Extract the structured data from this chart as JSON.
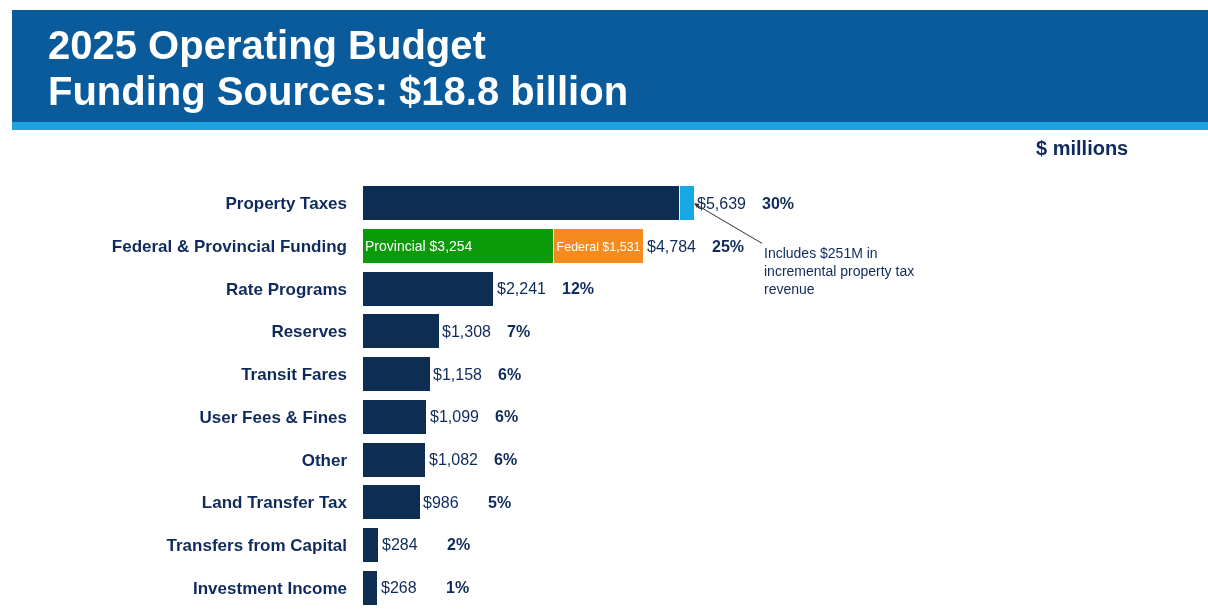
{
  "chart_data": {
    "type": "bar",
    "orientation": "horizontal",
    "stacked": true,
    "tick_labels": "y",
    "title": "2025 Operating Budget\nFunding Sources: $18.8 billion",
    "categories": [
      "Property Taxes",
      "Federal & Provincial Funding",
      "Rate Programs",
      "Reserves",
      "Transit Fares",
      "User Fees & Fines",
      "Other",
      "Land Transfer Tax",
      "Transfers from Capital",
      "Investment Income"
    ],
    "series": [
      {
        "color": "#0d2d52",
        "values": [
          5388,
          null,
          2241,
          1308,
          1158,
          1099,
          1082,
          986,
          284,
          268
        ]
      },
      {
        "color": "#17a9e6",
        "values": [
          251,
          null,
          null,
          null,
          null,
          null,
          null,
          null,
          null,
          null
        ]
      },
      {
        "color": "#0a9a0a",
        "values": [
          null,
          3254,
          null,
          null,
          null,
          null,
          null,
          null,
          null,
          null
        ],
        "value_labels": [
          null,
          "Provincial $3,254",
          null,
          null,
          null,
          null,
          null,
          null,
          null,
          null
        ]
      },
      {
        "color": "#f58a1f",
        "values": [
          null,
          1531,
          null,
          null,
          null,
          null,
          null,
          null,
          null,
          null
        ],
        "value_labels": [
          null,
          "Federal $1,531",
          null,
          null,
          null,
          null,
          null,
          null,
          null,
          null
        ]
      }
    ],
    "totals": [
      "$5,639",
      "$4,784",
      "$2,241",
      "$1,308",
      "$1,158",
      "$1,099",
      "$1,082",
      "$986",
      "$284",
      "$268"
    ],
    "annotations": [
      "$ millions",
      {
        "text": "Includes $251M in\nincremental property tax\nrevenue",
        "x": 5639,
        "y": "Property Taxes"
      },
      "30%",
      "25%",
      "12%",
      "7%",
      "6%",
      "6%",
      "6%",
      "5%",
      "2%",
      "1%"
    ]
  }
}
